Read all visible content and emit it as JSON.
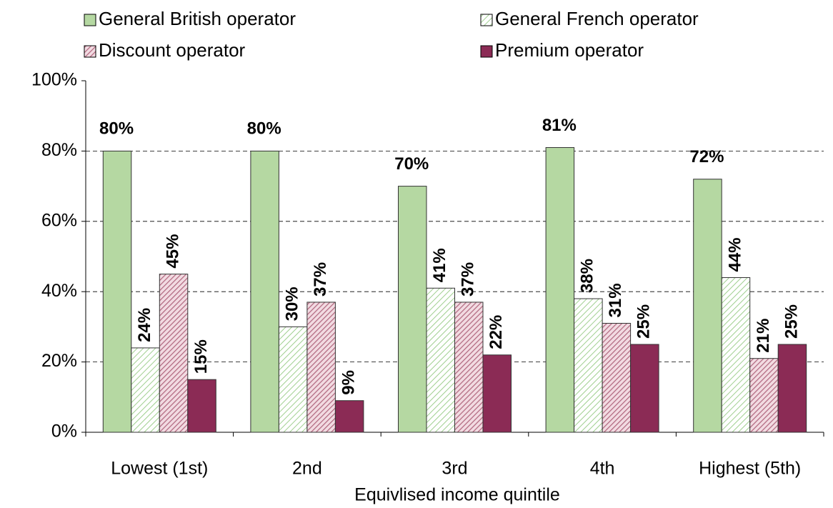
{
  "chart_data": {
    "type": "bar",
    "x_label": "Equivlised income quintile",
    "categories": [
      "Lowest (1st)",
      "2nd",
      "3rd",
      "4th",
      "Highest (5th)"
    ],
    "series": [
      {
        "name": "General British operator",
        "color": "#b5d8a2",
        "values": [
          80,
          80,
          70,
          81,
          72
        ],
        "value_labels": [
          "80%",
          "80%",
          "70%",
          "81%",
          "72%"
        ]
      },
      {
        "name": "General French operator",
        "color": "#9fcf8f",
        "values": [
          24,
          30,
          41,
          38,
          44
        ],
        "value_labels": [
          "24%",
          "30%",
          "41%",
          "38%",
          "44%"
        ]
      },
      {
        "name": "Discount operator",
        "color": "#c07a90",
        "values": [
          45,
          37,
          37,
          31,
          21
        ],
        "value_labels": [
          "45%",
          "37%",
          "37%",
          "31%",
          "21%"
        ]
      },
      {
        "name": "Premium operator",
        "color": "#8b2b55",
        "values": [
          15,
          9,
          22,
          25,
          25
        ],
        "value_labels": [
          "15%",
          "9%",
          "22%",
          "25%",
          "25%"
        ]
      }
    ],
    "ylim": [
      0,
      100
    ],
    "yticks": [
      {
        "value": 0,
        "label": "0%"
      },
      {
        "value": 20,
        "label": "20%"
      },
      {
        "value": 40,
        "label": "40%"
      },
      {
        "value": 60,
        "label": "60%"
      },
      {
        "value": 80,
        "label": "80%"
      },
      {
        "value": 100,
        "label": "100%"
      }
    ],
    "grid": true
  }
}
